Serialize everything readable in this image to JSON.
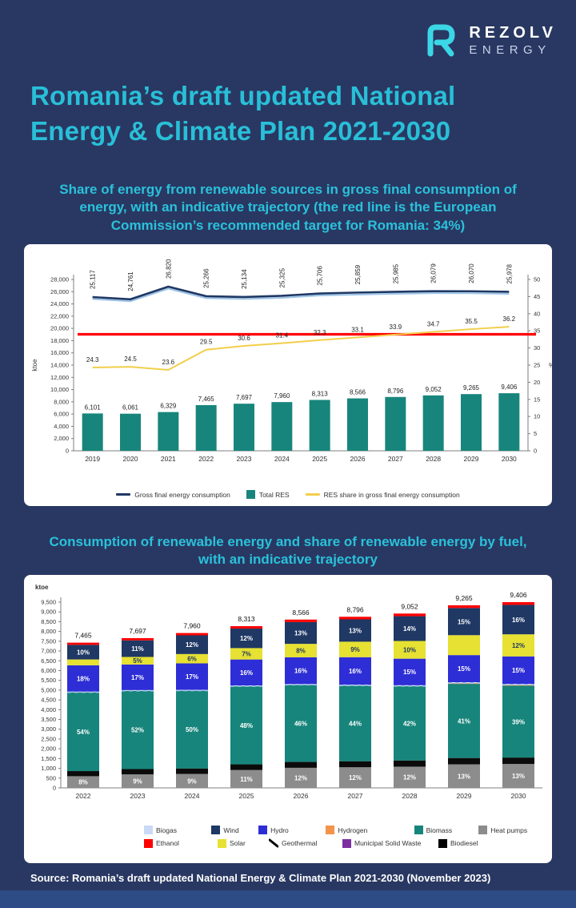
{
  "page": {
    "background": "#293862",
    "accent_cyan": "#2AC1DB",
    "footer_bar_color": "#2D4B85"
  },
  "header": {
    "logo": {
      "brand": "REZOLV",
      "division": "ENERGY",
      "icon": "rezolv-r-icon",
      "icon_color": "#3BD7E6"
    },
    "title_line1": "Romania’s draft updated National",
    "title_line2": "Energy & Climate Plan 2021-2030"
  },
  "sections": [
    {
      "heading": "Share of energy from renewable sources in gross final consumption of energy, with an indicative trajectory (the red line is the European Commission’s recommended target for Romania: 34%)"
    },
    {
      "heading": "Consumption of renewable energy and share of renewable energy by fuel, with an indicative trajectory"
    }
  ],
  "footer": {
    "source": "Source: Romania’s draft updated National Energy & Climate Plan 2021-2030 (November 2023)"
  },
  "chart_data": [
    {
      "type": "combo-bar-line",
      "x": [
        "2019",
        "2020",
        "2021",
        "2022",
        "2023",
        "2024",
        "2025",
        "2026",
        "2027",
        "2028",
        "2029",
        "2030"
      ],
      "left_axis": {
        "label": "ktoe",
        "min": 0,
        "max": 28000,
        "step": 2000
      },
      "right_axis": {
        "label": "%",
        "min": 0,
        "max": 50,
        "step": 5
      },
      "series": [
        {
          "name": "Gross final energy consumption",
          "type": "line",
          "axis": "left",
          "color": "#1F3864",
          "values": [
            25117,
            24761,
            26820,
            25266,
            25134,
            25325,
            25706,
            25859,
            25985,
            26079,
            26070,
            25978
          ]
        },
        {
          "name": "Total RES",
          "type": "bar",
          "axis": "left",
          "color": "#17857B",
          "values": [
            6101,
            6061,
            6329,
            7465,
            7697,
            7960,
            8313,
            8566,
            8796,
            9052,
            9265,
            9406
          ]
        },
        {
          "name": "RES share in gross final energy consumption",
          "type": "line",
          "axis": "right",
          "color": "#F2CE4B",
          "values": [
            24.3,
            24.5,
            23.6,
            29.5,
            30.6,
            31.4,
            32.3,
            33.1,
            33.9,
            34.7,
            35.5,
            36.2
          ]
        }
      ],
      "target_line": {
        "name": "European Commission recommended target for Romania",
        "axis": "right",
        "color": "#FF0000",
        "value": 34
      }
    },
    {
      "type": "stacked-bar",
      "unit": "ktoe",
      "x": [
        "2022",
        "2023",
        "2024",
        "2025",
        "2026",
        "2027",
        "2028",
        "2029",
        "2030"
      ],
      "y_axis": {
        "min": 0,
        "max": 9500,
        "step": 500
      },
      "totals": [
        7465,
        7697,
        7960,
        8313,
        8566,
        8796,
        9052,
        9265,
        9406
      ],
      "series": [
        {
          "name": "Heat pumps",
          "color": "#8C8C8C",
          "label_color": "#FFFFFF",
          "labels": [
            "8%",
            "9%",
            "9%",
            "11%",
            "12%",
            "12%",
            "12%",
            "13%",
            "13%"
          ],
          "pct": [
            8,
            9,
            9,
            11,
            12,
            12,
            12,
            13,
            13
          ]
        },
        {
          "name": "Biodiesel",
          "color": "#0B0B0B",
          "label_color": "#FFFFFF",
          "labels": [
            "",
            "",
            "",
            "",
            "",
            "",
            "",
            "",
            ""
          ],
          "pct": [
            3.5,
            3.5,
            3.5,
            3.5,
            3.5,
            3.5,
            3.5,
            3.5,
            3.5
          ]
        },
        {
          "name": "Biomass",
          "color": "#17857B",
          "label_color": "#FFFFFF",
          "labels": [
            "54%",
            "52%",
            "50%",
            "48%",
            "46%",
            "44%",
            "42%",
            "41%",
            "39%"
          ],
          "pct": [
            54,
            52,
            50,
            48,
            46,
            44,
            42,
            41,
            39
          ]
        },
        {
          "name": "Hydrogen",
          "color": "#C98B4E",
          "label_color": "#FFFFFF",
          "labels": [
            "",
            "",
            "",
            "",
            "",
            "",
            "",
            "",
            ""
          ],
          "pct": [
            0,
            0,
            0,
            0,
            0,
            0,
            0,
            0.3,
            0.5
          ]
        },
        {
          "name": "Biogas",
          "color": "#A9C9F2",
          "style": "dashed",
          "label_color": "#1F3864",
          "labels": [
            "",
            "",
            "",
            "",
            "",
            "",
            "",
            "",
            ""
          ],
          "pct": [
            0.5,
            0.5,
            0.5,
            0.5,
            0.5,
            0.5,
            0.5,
            0.5,
            0.5
          ]
        },
        {
          "name": "Hydro",
          "color": "#2E2ED6",
          "label_color": "#FFFFFF",
          "labels": [
            "18%",
            "17%",
            "17%",
            "16%",
            "16%",
            "16%",
            "15%",
            "15%",
            "15%"
          ],
          "pct": [
            18,
            17,
            17,
            16,
            16,
            16,
            15,
            15,
            15
          ]
        },
        {
          "name": "Solar",
          "color": "#E6E132",
          "label_color": "#1F3864",
          "labels": [
            "",
            "5%",
            "6%",
            "7%",
            "8%",
            "9%",
            "10%",
            "",
            "12%"
          ],
          "pct": [
            4,
            5,
            6,
            7,
            8,
            9,
            10,
            11,
            12
          ]
        },
        {
          "name": "Wind",
          "color": "#1F3864",
          "label_color": "#FFFFFF",
          "labels": [
            "10%",
            "11%",
            "12%",
            "12%",
            "13%",
            "13%",
            "14%",
            "15%",
            "16%"
          ],
          "pct": [
            10,
            11,
            12,
            12,
            13,
            13,
            14,
            15,
            16
          ]
        },
        {
          "name": "Ethanol",
          "color": "#FF0000",
          "label_color": "#FFFFFF",
          "labels": [
            "",
            "",
            "",
            "",
            "",
            "",
            "",
            "",
            ""
          ],
          "pct": [
            1.5,
            1.5,
            1.5,
            1.5,
            1.5,
            1.5,
            1.5,
            1.5,
            1.5
          ]
        }
      ],
      "legend_rows": [
        [
          {
            "name": "Biogas",
            "color": "#C9D9F6"
          },
          {
            "name": "Wind",
            "color": "#1F3864"
          },
          {
            "name": "Hydro",
            "color": "#2E2ED6"
          },
          {
            "name": "Hydrogen",
            "color": "#F4944A"
          },
          {
            "name": "Biomass",
            "color": "#17857B"
          },
          {
            "name": "Heat pumps",
            "color": "#8C8C8C"
          }
        ],
        [
          {
            "name": "Ethanol",
            "color": "#FF0000"
          },
          {
            "name": "Solar",
            "color": "#E6E132"
          },
          {
            "name": "Geothermal",
            "color": "#000000",
            "swatch": "diagonal-line"
          },
          {
            "name": "Municipal Solid Waste",
            "color": "#7C2FA0"
          },
          {
            "name": "Biodiesel",
            "color": "#000000"
          }
        ]
      ]
    }
  ]
}
